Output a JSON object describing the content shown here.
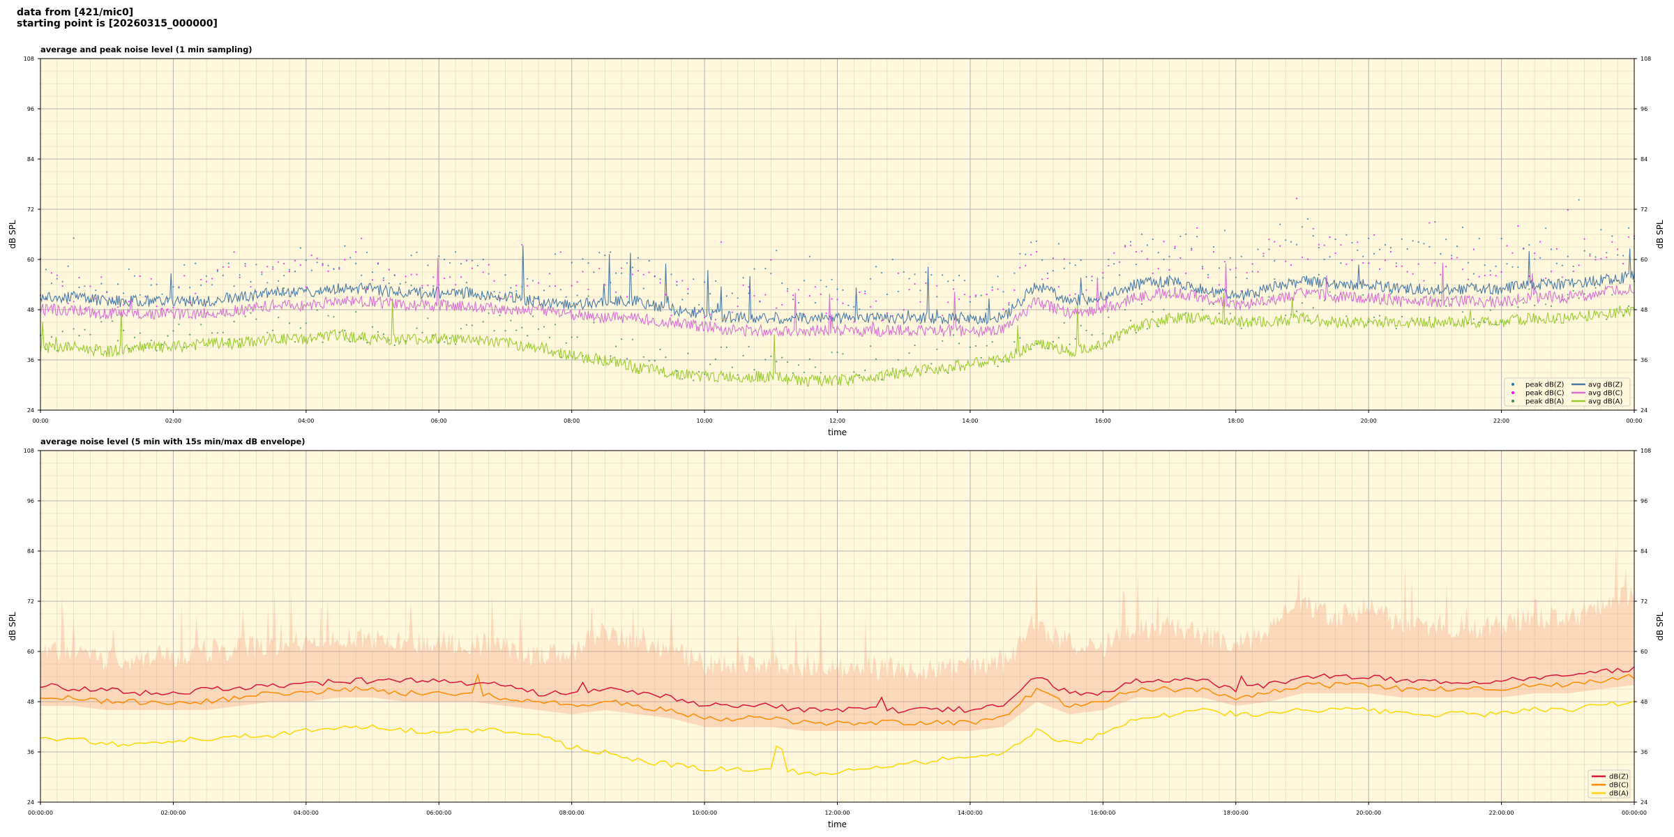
{
  "header": {
    "line1": "data from [421/mic0]",
    "line2": "starting point is [20260315_000000]"
  },
  "colors": {
    "plot_background": "#fff8dc",
    "grid_major": "#b0b0b0",
    "grid_minor": "#e8dcc0",
    "peak_z": "#1f77b4",
    "peak_c": "#ff00ff",
    "peak_a": "#2e8b57",
    "avg_z": "#4a7aa8",
    "avg_c": "#da70d6",
    "avg_a": "#9acd32",
    "dbz": "#dc143c",
    "dbc": "#ff8c00",
    "dba": "#ffd700",
    "envelope": "#f4a07a"
  },
  "chart_data": [
    {
      "type": "line",
      "title": "average and peak noise level (1 min sampling)",
      "xlabel": "time",
      "ylabel": "dB SPL",
      "xlim_hours": [
        0,
        24
      ],
      "ylim": [
        24,
        108
      ],
      "yticks": [
        24,
        36,
        48,
        60,
        72,
        84,
        96,
        108
      ],
      "xtick_labels": [
        "00:00",
        "02:00",
        "04:00",
        "06:00",
        "08:00",
        "10:00",
        "12:00",
        "14:00",
        "16:00",
        "18:00",
        "20:00",
        "22:00",
        "00:00"
      ],
      "grid": true,
      "legend_position": "lower-right",
      "legend": [
        "peak dB(Z)",
        "peak dB(C)",
        "peak dB(A)",
        "avg dB(Z)",
        "avg dB(C)",
        "avg dB(A)"
      ],
      "x_hours": [
        0,
        0.5,
        1,
        1.5,
        2,
        2.5,
        3,
        3.5,
        4,
        4.5,
        5,
        5.5,
        6,
        6.5,
        7,
        7.5,
        8,
        8.5,
        9,
        9.5,
        10,
        10.5,
        11,
        11.5,
        12,
        12.5,
        13,
        13.5,
        14,
        14.5,
        15,
        15.5,
        16,
        16.5,
        17,
        17.5,
        18,
        18.5,
        19,
        19.5,
        20,
        20.5,
        21,
        21.5,
        22,
        22.5,
        23,
        23.5,
        24
      ],
      "series": [
        {
          "name": "avg dB(Z)",
          "values": [
            51,
            51,
            50,
            50,
            50,
            50,
            51,
            52,
            52,
            53,
            53,
            52,
            52,
            52,
            51,
            50,
            49,
            50,
            50,
            48,
            47,
            46,
            46,
            46,
            46,
            46,
            46,
            46,
            46,
            46,
            54,
            50,
            51,
            54,
            55,
            53,
            51,
            53,
            55,
            54,
            54,
            53,
            53,
            53,
            53,
            54,
            54,
            55,
            56
          ]
        },
        {
          "name": "avg dB(C)",
          "values": [
            48,
            48,
            47,
            47,
            47,
            47,
            48,
            49,
            49,
            50,
            50,
            49,
            49,
            49,
            48,
            48,
            47,
            46,
            46,
            45,
            44,
            43,
            43,
            43,
            43,
            43,
            43,
            43,
            43,
            43,
            50,
            47,
            48,
            51,
            52,
            51,
            49,
            50,
            52,
            51,
            51,
            50,
            50,
            50,
            50,
            51,
            51,
            52,
            53
          ]
        },
        {
          "name": "avg dB(A)",
          "values": [
            39,
            39,
            38,
            39,
            39,
            40,
            40,
            41,
            41,
            42,
            41,
            41,
            41,
            41,
            40,
            39,
            37,
            36,
            34,
            33,
            32,
            32,
            32,
            31,
            31,
            32,
            33,
            34,
            35,
            36,
            40,
            38,
            40,
            44,
            46,
            46,
            45,
            45,
            46,
            45,
            45,
            45,
            45,
            45,
            45,
            46,
            46,
            47,
            48
          ]
        },
        {
          "name": "peak dB(Z)",
          "values": [
            56,
            55,
            54,
            54,
            54,
            55,
            57,
            58,
            59,
            60,
            59,
            57,
            58,
            58,
            56,
            55,
            55,
            58,
            57,
            54,
            52,
            53,
            54,
            52,
            53,
            52,
            53,
            53,
            52,
            52,
            62,
            58,
            58,
            62,
            63,
            61,
            58,
            63,
            66,
            63,
            65,
            62,
            61,
            61,
            61,
            62,
            62,
            64,
            66
          ]
        },
        {
          "name": "peak dB(C)",
          "values": [
            54,
            53,
            52,
            52,
            52,
            53,
            55,
            56,
            57,
            58,
            57,
            56,
            56,
            56,
            54,
            53,
            52,
            55,
            54,
            51,
            50,
            50,
            51,
            49,
            50,
            49,
            50,
            50,
            49,
            49,
            60,
            55,
            56,
            60,
            61,
            59,
            56,
            61,
            64,
            61,
            63,
            60,
            59,
            59,
            59,
            60,
            60,
            62,
            64
          ]
        },
        {
          "name": "peak dB(A)",
          "values": [
            42,
            42,
            41,
            42,
            42,
            43,
            43,
            44,
            44,
            45,
            44,
            44,
            44,
            44,
            43,
            42,
            40,
            39,
            37,
            36,
            35,
            35,
            35,
            34,
            34,
            35,
            36,
            37,
            38,
            39,
            43,
            41,
            43,
            47,
            49,
            49,
            48,
            48,
            49,
            48,
            48,
            48,
            48,
            48,
            48,
            49,
            49,
            50,
            51
          ]
        }
      ]
    },
    {
      "type": "line",
      "title": "average noise level (5 min with 15s min/max dB envelope)",
      "xlabel": "time",
      "ylabel": "dB SPL",
      "xlim_hours": [
        0,
        24
      ],
      "ylim": [
        24,
        108
      ],
      "yticks": [
        24,
        36,
        48,
        60,
        72,
        84,
        96,
        108
      ],
      "xtick_labels": [
        "00:00:00",
        "02:00:00",
        "04:00:00",
        "06:00:00",
        "08:00:00",
        "10:00:00",
        "12:00:00",
        "14:00:00",
        "16:00:00",
        "18:00:00",
        "20:00:00",
        "22:00:00",
        "00:00:00"
      ],
      "grid": true,
      "legend_position": "lower-right",
      "legend": [
        "dB(Z)",
        "dB(C)",
        "dB(A)"
      ],
      "x_hours": [
        0,
        0.5,
        1,
        1.5,
        2,
        2.5,
        3,
        3.5,
        4,
        4.5,
        5,
        5.5,
        6,
        6.5,
        7,
        7.5,
        8,
        8.5,
        9,
        9.5,
        10,
        10.5,
        11,
        11.5,
        12,
        12.5,
        13,
        13.5,
        14,
        14.5,
        15,
        15.5,
        16,
        16.5,
        17,
        17.5,
        18,
        18.5,
        19,
        19.5,
        20,
        20.5,
        21,
        21.5,
        22,
        22.5,
        23,
        23.5,
        24
      ],
      "series": [
        {
          "name": "dB(Z)",
          "values": [
            52,
            51,
            51,
            50,
            50,
            51,
            51,
            52,
            52,
            53,
            53,
            53,
            53,
            52,
            52,
            50,
            50,
            51,
            50,
            49,
            47,
            47,
            47,
            46,
            46,
            46,
            46,
            46,
            46,
            47,
            54,
            50,
            50,
            53,
            53,
            53,
            51,
            52,
            54,
            54,
            54,
            53,
            53,
            53,
            53,
            54,
            54,
            55,
            56
          ]
        },
        {
          "name": "dB(C)",
          "values": [
            49,
            49,
            48,
            48,
            48,
            48,
            49,
            50,
            50,
            51,
            51,
            50,
            50,
            50,
            49,
            48,
            47,
            48,
            47,
            46,
            44,
            44,
            44,
            43,
            43,
            43,
            43,
            43,
            43,
            44,
            51,
            47,
            48,
            51,
            51,
            51,
            49,
            50,
            52,
            52,
            52,
            51,
            51,
            51,
            51,
            52,
            52,
            53,
            54
          ]
        },
        {
          "name": "dB(A)",
          "values": [
            39,
            39,
            38,
            38,
            39,
            39,
            40,
            40,
            41,
            42,
            42,
            41,
            41,
            41,
            41,
            40,
            37,
            36,
            34,
            33,
            32,
            32,
            32,
            31,
            31,
            32,
            33,
            34,
            35,
            36,
            41,
            38,
            40,
            44,
            45,
            46,
            45,
            45,
            46,
            46,
            46,
            45,
            45,
            45,
            45,
            46,
            46,
            47,
            48
          ]
        },
        {
          "name": "envelope max",
          "values": [
            60,
            60,
            58,
            58,
            59,
            60,
            61,
            62,
            62,
            63,
            63,
            62,
            62,
            62,
            61,
            59,
            59,
            65,
            62,
            60,
            57,
            57,
            57,
            56,
            56,
            56,
            56,
            56,
            56,
            57,
            66,
            62,
            61,
            66,
            66,
            64,
            61,
            66,
            72,
            68,
            70,
            67,
            66,
            66,
            66,
            68,
            68,
            70,
            74
          ]
        },
        {
          "name": "envelope min",
          "values": [
            47,
            47,
            46,
            46,
            46,
            46,
            47,
            48,
            48,
            49,
            49,
            48,
            48,
            48,
            47,
            46,
            45,
            46,
            45,
            44,
            42,
            42,
            42,
            41,
            41,
            41,
            41,
            41,
            41,
            42,
            48,
            45,
            46,
            49,
            49,
            49,
            47,
            48,
            50,
            50,
            50,
            49,
            49,
            49,
            49,
            50,
            50,
            51,
            52
          ]
        }
      ]
    }
  ]
}
